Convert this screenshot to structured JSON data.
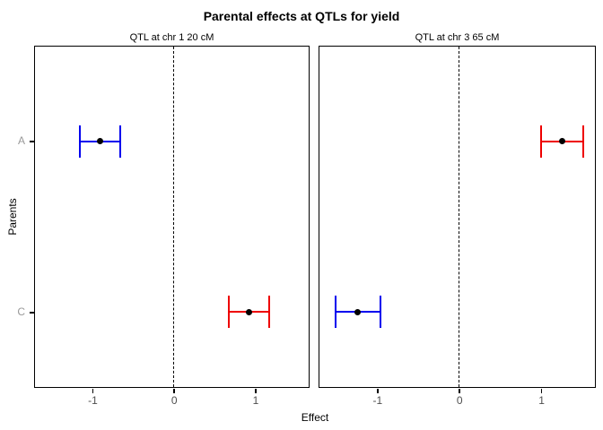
{
  "title": "Parental effects at QTLs for yield",
  "chart_data": {
    "type": "errorbar",
    "title": "Parental effects at QTLs for yield",
    "xlabel": "Effect",
    "ylabel": "Parents",
    "xlim": [
      -1.71,
      1.65
    ],
    "x_ticks": [
      -1,
      0,
      1
    ],
    "y_categories": [
      "A",
      "C"
    ],
    "grid": false,
    "legend": "none",
    "reference_line": {
      "x": 0,
      "style": "dashed",
      "color": "#000000"
    },
    "colors": {
      "blue": "#0000EE",
      "red": "#EE0000",
      "point": "#000000"
    },
    "facets": [
      {
        "label": "QTL at chr 1 20 cM",
        "series": [
          {
            "parent": "A",
            "estimate": -0.91,
            "ci_low": -1.16,
            "ci_high": -0.66,
            "color_key": "blue"
          },
          {
            "parent": "C",
            "estimate": 0.92,
            "ci_low": 0.67,
            "ci_high": 1.17,
            "color_key": "red"
          }
        ]
      },
      {
        "label": "QTL at chr 3 65 cM",
        "series": [
          {
            "parent": "A",
            "estimate": 1.25,
            "ci_low": 0.99,
            "ci_high": 1.51,
            "color_key": "red"
          },
          {
            "parent": "C",
            "estimate": -1.24,
            "ci_low": -1.51,
            "ci_high": -0.97,
            "color_key": "blue"
          }
        ]
      }
    ]
  }
}
